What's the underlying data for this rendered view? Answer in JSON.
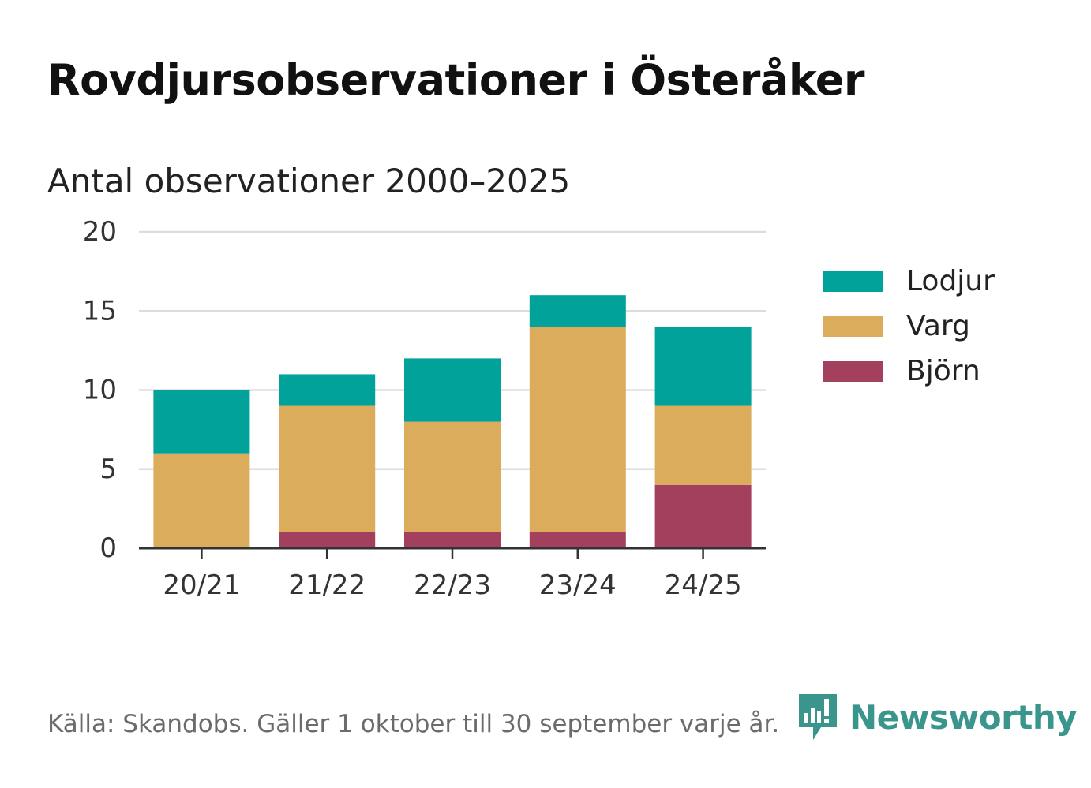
{
  "title": "Rovdjursobservationer i Österåker",
  "subtitle": "Antal observationer 2000–2025",
  "footer": {
    "source": "Källa: Skandobs. Gäller 1 oktober till 30 september varje år.",
    "brand": "Newsworthy"
  },
  "colors": {
    "lodjur": "#00a29a",
    "varg": "#dbac5c",
    "bjorn": "#a3405e",
    "grid": "#dddddd",
    "axis": "#333333",
    "brand": "#3a968d"
  },
  "legend": [
    {
      "label": "Lodjur",
      "color": "#00a29a"
    },
    {
      "label": "Varg",
      "color": "#dbac5c"
    },
    {
      "label": "Björn",
      "color": "#a3405e"
    }
  ],
  "chart_data": {
    "type": "bar",
    "stacked": true,
    "title": "Rovdjursobservationer i Österåker",
    "subtitle": "Antal observationer 2000–2025",
    "xlabel": "",
    "ylabel": "",
    "categories": [
      "20/21",
      "21/22",
      "22/23",
      "23/24",
      "24/25"
    ],
    "series": [
      {
        "name": "Björn",
        "color": "#a3405e",
        "values": [
          0,
          1,
          1,
          1,
          4
        ]
      },
      {
        "name": "Varg",
        "color": "#dbac5c",
        "values": [
          6,
          8,
          7,
          13,
          5
        ]
      },
      {
        "name": "Lodjur",
        "color": "#00a29a",
        "values": [
          4,
          2,
          4,
          2,
          5
        ]
      }
    ],
    "ylim": [
      0,
      20
    ],
    "yticks": [
      0,
      5,
      10,
      15,
      20
    ],
    "grid": true,
    "legend_position": "right"
  }
}
